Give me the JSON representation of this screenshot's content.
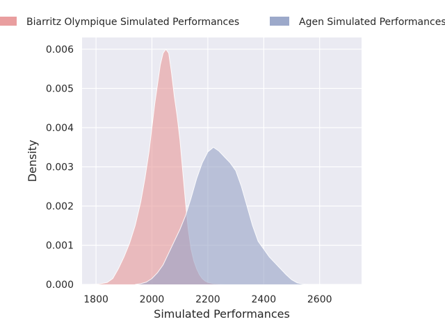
{
  "chart_data": {
    "type": "area",
    "title": "",
    "xlabel": "Simulated Performances",
    "ylabel": "Density",
    "xlim": [
      1750,
      2750
    ],
    "ylim": [
      0,
      0.0063
    ],
    "xticks": [
      1800,
      2000,
      2200,
      2400,
      2600
    ],
    "xtick_labels": [
      "1800",
      "2000",
      "2200",
      "2400",
      "2600"
    ],
    "yticks": [
      0.0,
      0.001,
      0.002,
      0.003,
      0.004,
      0.005,
      0.006
    ],
    "ytick_labels": [
      "0.000",
      "0.001",
      "0.002",
      "0.003",
      "0.004",
      "0.005",
      "0.006"
    ],
    "grid": true,
    "legend_position": "top",
    "series": [
      {
        "name": "Biarritz Olympique Simulated Performances",
        "color": "#e8999a",
        "fill": "#e8999a",
        "x": [
          1780,
          1810,
          1840,
          1860,
          1880,
          1900,
          1920,
          1940,
          1960,
          1975,
          1990,
          2000,
          2010,
          2020,
          2030,
          2040,
          2050,
          2060,
          2070,
          2080,
          2090,
          2100,
          2110,
          2120,
          2130,
          2140,
          2150,
          2160,
          2170,
          2180,
          2190,
          2200,
          2220,
          2240,
          2260,
          2280
        ],
        "y": [
          0.0,
          1e-05,
          5e-05,
          0.00015,
          0.0004,
          0.0007,
          0.00105,
          0.0015,
          0.0021,
          0.0027,
          0.0034,
          0.004,
          0.0046,
          0.0051,
          0.0056,
          0.0059,
          0.006,
          0.0059,
          0.0054,
          0.0048,
          0.0043,
          0.0037,
          0.0029,
          0.0021,
          0.0014,
          0.0009,
          0.0006,
          0.0004,
          0.00025,
          0.00015,
          9e-05,
          5e-05,
          2e-05,
          1e-05,
          3e-06,
          0.0
        ]
      },
      {
        "name": "Agen Simulated Performances",
        "color": "#97a4c7",
        "fill": "#97a4c7",
        "x": [
          1940,
          1960,
          1980,
          2000,
          2020,
          2040,
          2060,
          2080,
          2100,
          2120,
          2140,
          2160,
          2180,
          2200,
          2220,
          2240,
          2260,
          2280,
          2300,
          2320,
          2340,
          2360,
          2380,
          2400,
          2420,
          2440,
          2460,
          2480,
          2500,
          2520,
          2540,
          2560,
          2600,
          2660,
          2730
        ],
        "y": [
          0.0,
          2e-05,
          6e-05,
          0.00015,
          0.0003,
          0.0005,
          0.0008,
          0.0011,
          0.0014,
          0.00175,
          0.0022,
          0.0027,
          0.0031,
          0.00338,
          0.0035,
          0.0034,
          0.00325,
          0.0031,
          0.0029,
          0.0025,
          0.002,
          0.0015,
          0.0011,
          0.0009,
          0.0007,
          0.00055,
          0.0004,
          0.00025,
          0.00012,
          4e-05,
          1e-05,
          0.0,
          0.0,
          0.0,
          0.0
        ]
      }
    ]
  }
}
